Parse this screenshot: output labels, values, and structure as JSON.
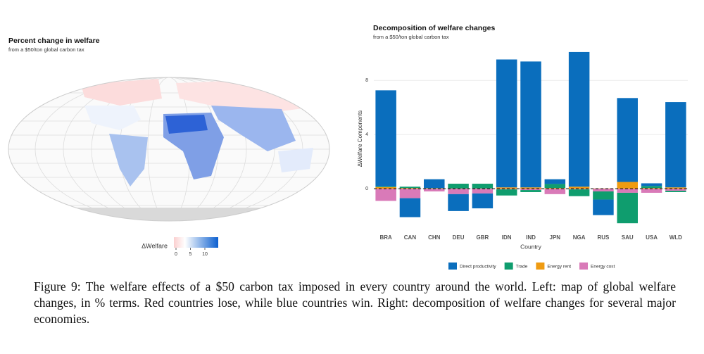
{
  "map": {
    "title": "Percent change in welfare",
    "subtitle": "from a $50/ton global carbon tax",
    "legend_title": "ΔWelfare",
    "legend_ticks": [
      0,
      5,
      10
    ]
  },
  "chart_data": {
    "type": "stacked-bar",
    "title": "Decomposition of welfare changes",
    "subtitle": "from a $50/ton global carbon tax",
    "x_label": "Country",
    "y_label": "ΔWelfare Components",
    "categories": [
      "BRA",
      "CAN",
      "CHN",
      "DEU",
      "GBR",
      "IDN",
      "IND",
      "JPN",
      "NGA",
      "RUS",
      "SAU",
      "USA",
      "WLD"
    ],
    "series": [
      {
        "name": "Direct productivity",
        "color": "#0a6ebd",
        "values": [
          7.1,
          -1.4,
          0.65,
          -1.25,
          -1.1,
          9.45,
          9.3,
          0.35,
          9.95,
          -1.15,
          6.2,
          0.2,
          6.3
        ]
      },
      {
        "name": "Trade",
        "color": "#0f9d6e",
        "values": [
          0.05,
          0.1,
          0.02,
          0.35,
          0.35,
          -0.45,
          -0.15,
          0.3,
          -0.5,
          -0.6,
          -2.25,
          0.15,
          -0.1
        ]
      },
      {
        "name": "Energy rent",
        "color": "#ef9b11",
        "values": [
          0.12,
          0.05,
          0.03,
          0.02,
          0.02,
          0.1,
          0.1,
          0.05,
          0.15,
          0.02,
          0.5,
          0.05,
          0.1
        ]
      },
      {
        "name": "Energy cost",
        "color": "#d97ab8",
        "values": [
          -0.9,
          -0.7,
          -0.2,
          -0.4,
          -0.35,
          -0.05,
          -0.1,
          -0.4,
          -0.05,
          -0.2,
          -0.3,
          -0.3,
          -0.15
        ]
      }
    ],
    "ylim": [
      -2.8,
      10.2
    ],
    "yticks": [
      0,
      4,
      8
    ],
    "grid": true,
    "legend": "bottom"
  },
  "caption": "Figure 9: The welfare effects of a $50 carbon tax imposed in every country around the world. Left: map of global welfare changes, in % terms. Red countries lose, while blue countries win. Right: decomposition of welfare changes for several major economies."
}
